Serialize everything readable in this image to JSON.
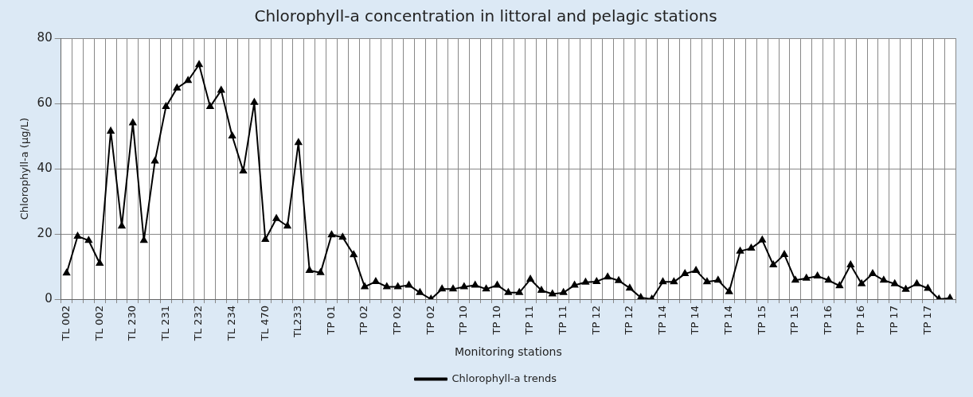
{
  "chart_data": {
    "type": "line",
    "title": "Chlorophyll-a concentration in littoral and pelagic stations",
    "xlabel": "Monitoring stations",
    "ylabel": "Chlorophyll-a (μg/L)",
    "categories": [
      "TL 002",
      null,
      null,
      "TL 002",
      null,
      null,
      "TL 230",
      null,
      null,
      "TL 231",
      null,
      null,
      "TL 232",
      null,
      null,
      "TL 234",
      null,
      null,
      "TL 470",
      null,
      null,
      "TL233",
      null,
      null,
      "TP 01",
      null,
      null,
      "TP 02",
      null,
      null,
      "TP 02",
      null,
      null,
      "TP 02",
      null,
      null,
      "TP 10",
      null,
      null,
      "TP 10",
      null,
      null,
      "TP 11",
      null,
      null,
      "TP 11",
      null,
      null,
      "TP 12",
      null,
      null,
      "TP 12",
      null,
      null,
      "TP 14",
      null,
      null,
      "TP 14",
      null,
      null,
      "TP 14",
      null,
      null,
      "TP 15",
      null,
      null,
      "TP 15",
      null,
      null,
      "TP 16",
      null,
      null,
      "TP 16",
      null,
      null,
      "TP 17",
      null,
      null,
      "TP 17",
      null,
      null
    ],
    "series": [
      {
        "name": "Chlorophyll-a trends",
        "color": "#000000",
        "values": [
          8,
          19.3,
          18,
          11,
          51.5,
          22.4,
          54,
          18,
          42.3,
          59,
          64.7,
          67,
          71.9,
          59,
          64,
          50,
          39.3,
          60.3,
          18.3,
          24.7,
          22.4,
          48,
          8.8,
          8.1,
          19.7,
          19,
          13.6,
          3.8,
          5.4,
          3.8,
          3.8,
          4.3,
          2,
          0,
          3.1,
          3.1,
          3.8,
          4.3,
          3.1,
          4.3,
          2,
          2,
          6.1,
          2.7,
          1.6,
          2,
          4.3,
          5.2,
          5.4,
          6.8,
          5.7,
          3.4,
          0.5,
          0,
          5.3,
          5.3,
          7.8,
          8.8,
          5.3,
          5.8,
          2.3,
          14.7,
          15.6,
          18.1,
          10.5,
          13.7,
          5.8,
          6.4,
          7.1,
          5.8,
          4.1,
          10.5,
          4.7,
          7.8,
          5.8,
          4.7,
          3,
          4.7,
          3.3,
          0,
          0.3
        ]
      }
    ],
    "ylim": [
      0,
      80
    ],
    "yticks": [
      0,
      20,
      40,
      60,
      80
    ],
    "grid": true,
    "legend": "bottom",
    "marker": "triangle",
    "line_style": "solid"
  }
}
